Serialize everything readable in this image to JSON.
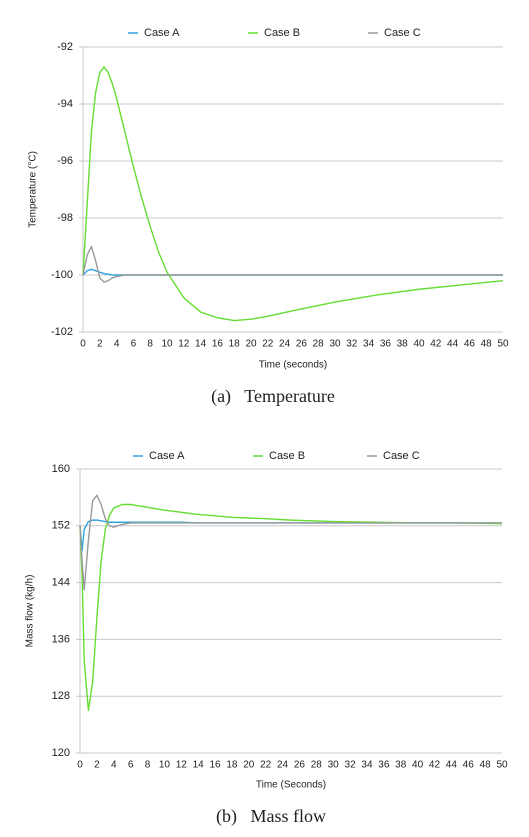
{
  "chart_data": [
    {
      "type": "line",
      "caption": "(a)   Temperature",
      "y_label": "Temperature (°C)",
      "x_label": "Time (seconds)",
      "x": [
        0,
        0.5,
        1,
        1.5,
        2,
        2.5,
        3,
        3.5,
        4,
        5,
        6,
        7,
        8,
        9,
        10,
        12,
        14,
        16,
        18,
        20,
        22,
        25,
        30,
        35,
        40,
        45,
        50
      ],
      "xlim": [
        0,
        50
      ],
      "xticks": [
        0,
        2,
        4,
        6,
        8,
        10,
        12,
        14,
        16,
        18,
        20,
        22,
        24,
        26,
        28,
        30,
        32,
        34,
        36,
        38,
        40,
        42,
        44,
        46,
        48,
        50
      ],
      "ylim": [
        -102,
        -92
      ],
      "yticks": [
        -102,
        -100,
        -98,
        -96,
        -94,
        -92
      ],
      "grid": true,
      "series": [
        {
          "name": "Case A",
          "color": "#2ea3dc",
          "values": [
            -100,
            -99.85,
            -99.8,
            -99.85,
            -99.9,
            -99.95,
            -99.97,
            -100,
            -100,
            -100,
            -100,
            -100,
            -100,
            -100,
            -100,
            -100,
            -100,
            -100,
            -100,
            -100,
            -100,
            -100,
            -100,
            -100,
            -100,
            -100,
            -100
          ]
        },
        {
          "name": "Case B",
          "color": "#66dd33",
          "values": [
            -100,
            -97.5,
            -95,
            -93.6,
            -92.9,
            -92.7,
            -92.9,
            -93.3,
            -93.8,
            -95,
            -96.2,
            -97.3,
            -98.3,
            -99.2,
            -99.9,
            -100.8,
            -101.3,
            -101.5,
            -101.6,
            -101.55,
            -101.45,
            -101.25,
            -100.95,
            -100.7,
            -100.5,
            -100.35,
            -100.2
          ]
        },
        {
          "name": "Case C",
          "color": "#999999",
          "values": [
            -100,
            -99.3,
            -99,
            -99.5,
            -100.1,
            -100.25,
            -100.2,
            -100.1,
            -100.05,
            -100,
            -100,
            -100,
            -100,
            -100,
            -100,
            -100,
            -100,
            -100,
            -100,
            -100,
            -100,
            -100,
            -100,
            -100,
            -100,
            -100,
            -100
          ]
        }
      ]
    },
    {
      "type": "line",
      "caption": "(b)   Mass flow",
      "y_label": "Mass flow (kg/h)",
      "x_label": "Time (Seconds)",
      "x": [
        0,
        0.25,
        0.5,
        1,
        1.5,
        2,
        2.5,
        3,
        3.5,
        4,
        5,
        6,
        7,
        8,
        9,
        10,
        12,
        14,
        16,
        18,
        20,
        22,
        25,
        30,
        35,
        40,
        45,
        50
      ],
      "xlim": [
        0,
        50
      ],
      "xticks": [
        0,
        2,
        4,
        6,
        8,
        10,
        12,
        14,
        16,
        18,
        20,
        22,
        24,
        26,
        28,
        30,
        32,
        34,
        36,
        38,
        40,
        42,
        44,
        46,
        48,
        50
      ],
      "ylim": [
        120,
        160
      ],
      "yticks": [
        120,
        128,
        136,
        144,
        152,
        160
      ],
      "grid": true,
      "series": [
        {
          "name": "Case A",
          "color": "#2ea3dc",
          "values": [
            152,
            148.5,
            151.5,
            152.6,
            152.8,
            152.8,
            152.7,
            152.6,
            152.5,
            152.5,
            152.5,
            152.5,
            152.5,
            152.5,
            152.5,
            152.5,
            152.5,
            152.4,
            152.4,
            152.4,
            152.4,
            152.4,
            152.4,
            152.4,
            152.4,
            152.4,
            152.4,
            152.4
          ]
        },
        {
          "name": "Case B",
          "color": "#66dd33",
          "values": [
            152,
            145,
            133,
            126,
            130,
            139,
            147,
            151.5,
            153.5,
            154.5,
            155,
            155,
            154.8,
            154.6,
            154.4,
            154.2,
            153.9,
            153.6,
            153.4,
            153.2,
            153.1,
            153,
            152.8,
            152.6,
            152.5,
            152.4,
            152.4,
            152.3
          ]
        },
        {
          "name": "Case C",
          "color": "#999999",
          "values": [
            152,
            147,
            143,
            150,
            155.5,
            156.3,
            155,
            153,
            152,
            151.8,
            152.2,
            152.4,
            152.4,
            152.4,
            152.4,
            152.4,
            152.4,
            152.4,
            152.4,
            152.4,
            152.4,
            152.4,
            152.4,
            152.4,
            152.4,
            152.4,
            152.4,
            152.4
          ]
        }
      ]
    }
  ]
}
